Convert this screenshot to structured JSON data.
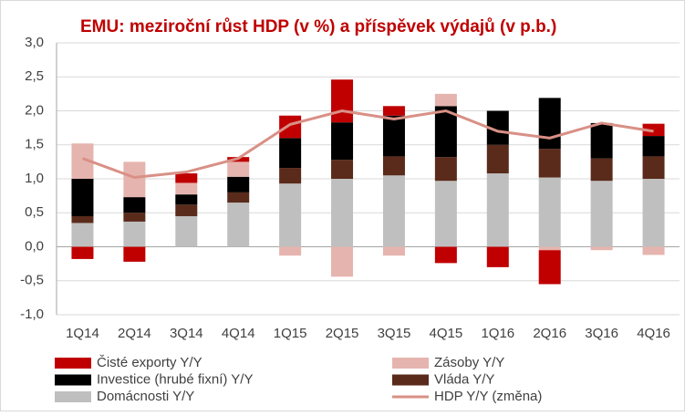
{
  "chart_data": {
    "type": "bar",
    "stacked": true,
    "title": "EMU: meziroční růst HDP (v %)  a příspěvek výdajů (v p.b.)",
    "title_color": "#c00000",
    "categories": [
      "1Q14",
      "2Q14",
      "3Q14",
      "4Q14",
      "1Q15",
      "2Q15",
      "3Q15",
      "4Q15",
      "1Q16",
      "2Q16",
      "3Q16",
      "4Q16"
    ],
    "ylim": [
      -1.0,
      3.0
    ],
    "yticks": [
      {
        "value": -1.0,
        "label": "-1,0"
      },
      {
        "value": -0.5,
        "label": "-0,5"
      },
      {
        "value": 0,
        "label": "0,0"
      },
      {
        "value": 0.5,
        "label": "0,5"
      },
      {
        "value": 1.0,
        "label": "1,0"
      },
      {
        "value": 1.5,
        "label": "1,5"
      },
      {
        "value": 2.0,
        "label": "2,0"
      },
      {
        "value": 2.5,
        "label": "2,5"
      },
      {
        "value": 3.0,
        "label": "3,0"
      }
    ],
    "grid": true,
    "series": [
      {
        "name": "Domácnosti Y/Y",
        "color": "#bfbfbf",
        "type": "bar",
        "values": [
          0.35,
          0.37,
          0.45,
          0.65,
          0.93,
          1.0,
          1.05,
          0.97,
          1.08,
          1.02,
          0.97,
          1.0
        ]
      },
      {
        "name": "Vláda Y/Y",
        "color": "#5a2a1a",
        "type": "bar",
        "values": [
          0.1,
          0.13,
          0.17,
          0.15,
          0.23,
          0.28,
          0.28,
          0.35,
          0.42,
          0.42,
          0.33,
          0.33
        ]
      },
      {
        "name": "Investice (hrubé fixní) Y/Y",
        "color": "#000000",
        "type": "bar",
        "values": [
          0.55,
          0.23,
          0.15,
          0.23,
          0.44,
          0.55,
          0.6,
          0.75,
          0.5,
          0.75,
          0.52,
          0.3
        ]
      },
      {
        "name": "Zásoby Y/Y",
        "color": "#e6b4ae",
        "type": "bar",
        "values": [
          0.52,
          0.52,
          0.17,
          0.22,
          -0.13,
          -0.44,
          -0.13,
          0.18,
          0,
          -0.05,
          -0.05,
          -0.12
        ]
      },
      {
        "name": "Čisté exporty Y/Y",
        "color": "#c00000",
        "type": "bar",
        "values": [
          -0.18,
          -0.22,
          0.14,
          0.07,
          0.33,
          0.63,
          0.14,
          -0.24,
          -0.3,
          -0.5,
          0,
          0.18
        ]
      },
      {
        "name": "HDP Y/Y (změna)",
        "color": "#d99086",
        "type": "line",
        "values": [
          1.3,
          1.02,
          1.1,
          1.3,
          1.8,
          2.0,
          1.88,
          2.0,
          1.7,
          1.6,
          1.82,
          1.7
        ]
      }
    ],
    "legend_order": [
      4,
      3,
      2,
      1,
      0,
      5
    ]
  }
}
